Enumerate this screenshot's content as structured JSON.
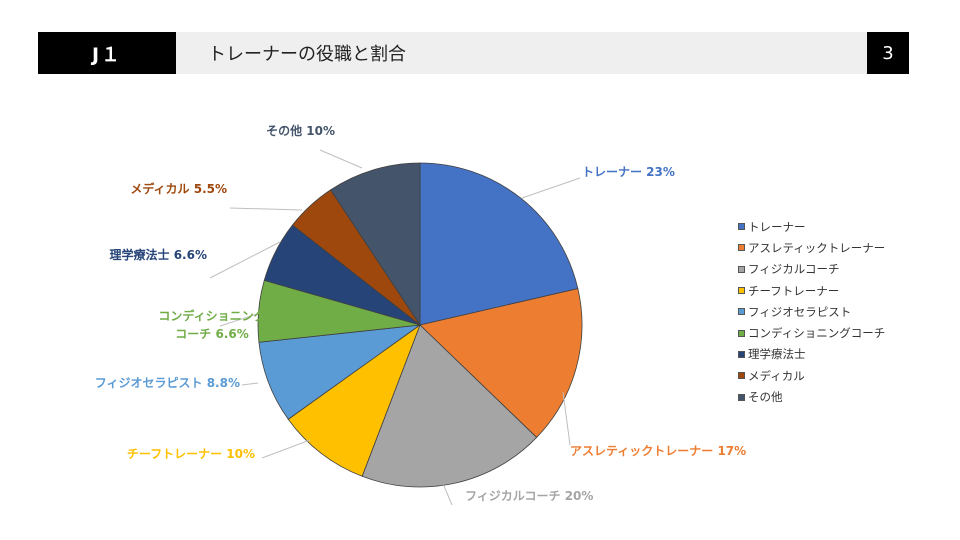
{
  "header": {
    "left_label": "J１",
    "title": "トレーナーの役職と割合",
    "page_number": "3"
  },
  "chart_data": {
    "type": "pie",
    "title": "",
    "slices": [
      {
        "name": "トレーナー",
        "value": 23,
        "label": "トレーナー 23%",
        "color": "#4472c4"
      },
      {
        "name": "アスレティックトレーナー",
        "value": 17,
        "label": "アスレティックトレーナー 17%",
        "color": "#ed7d31"
      },
      {
        "name": "フィジカルコーチ",
        "value": 20,
        "label": "フィジカルコーチ 20%",
        "color": "#a5a5a5"
      },
      {
        "name": "チーフトレーナー",
        "value": 10,
        "label": "チーフトレーナー 10%",
        "color": "#ffc000"
      },
      {
        "name": "フィジオセラピスト",
        "value": 8.8,
        "label": "フィジオセラピスト 8.8%",
        "color": "#5b9bd5"
      },
      {
        "name": "コンディショニングコーチ",
        "value": 6.6,
        "label": "コンディショニング\nコーチ 6.6%",
        "color": "#70ad47"
      },
      {
        "name": "理学療法士",
        "value": 6.6,
        "label": "理学療法士 6.6%",
        "color": "#264478"
      },
      {
        "name": "メディカル",
        "value": 5.5,
        "label": "メディカル 5.5%",
        "color": "#9e480e"
      },
      {
        "name": "その他",
        "value": 10,
        "label": "その他 10%",
        "color": "#44546a"
      }
    ],
    "legend_position": "right"
  }
}
